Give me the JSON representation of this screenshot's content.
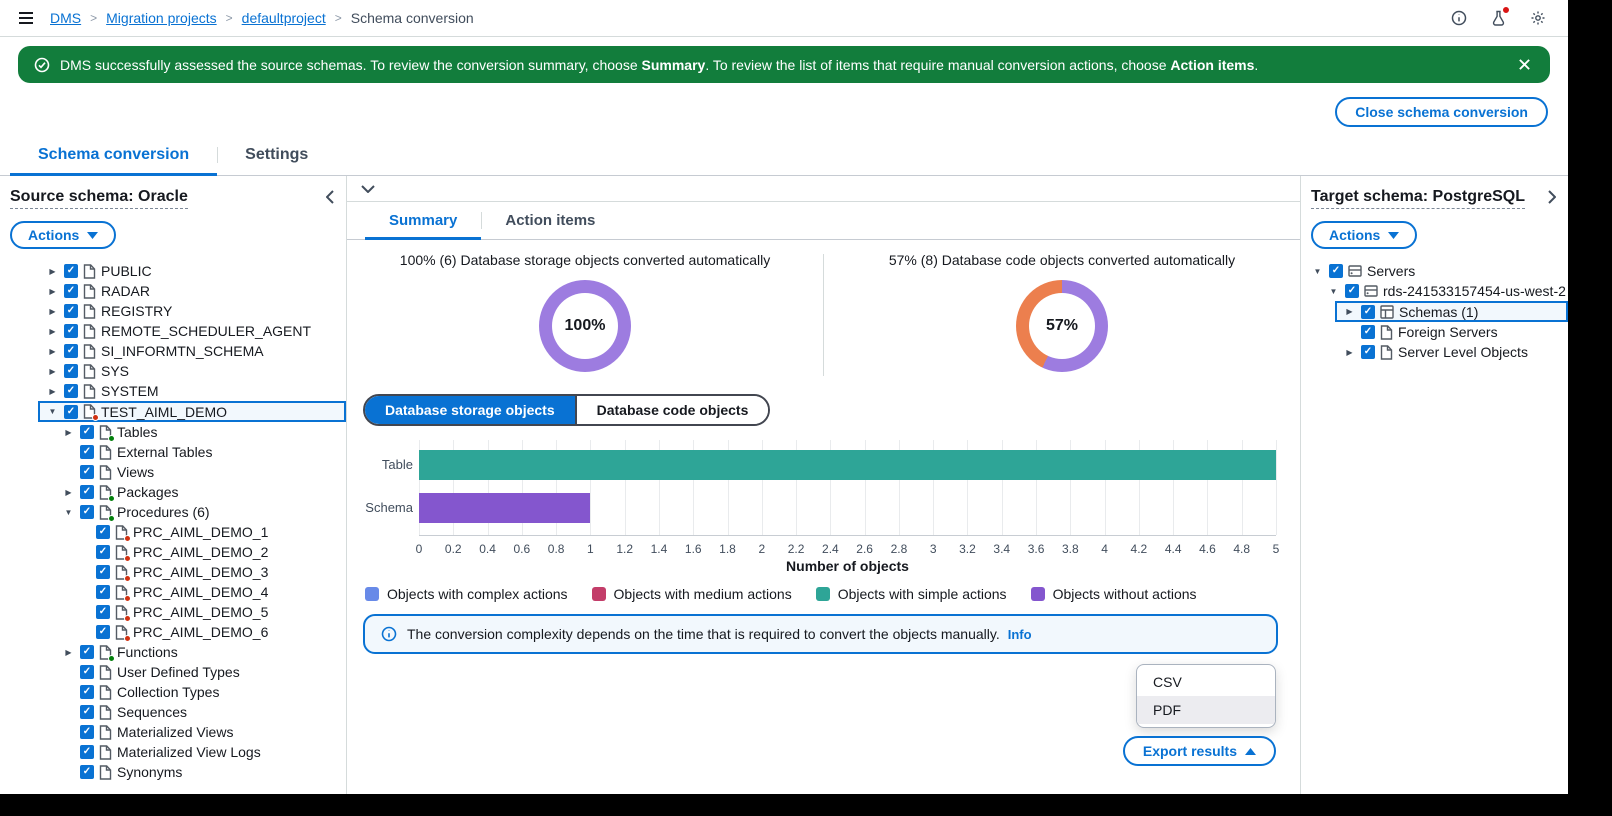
{
  "breadcrumb": [
    {
      "label": "DMS",
      "link": true
    },
    {
      "label": "Migration projects",
      "link": true
    },
    {
      "label": "defaultproject",
      "link": true
    },
    {
      "label": "Schema conversion",
      "link": false
    }
  ],
  "flashbar": {
    "segments": [
      {
        "text": "DMS successfully assessed the source schemas. To review the conversion summary, choose ",
        "bold": false
      },
      {
        "text": "Summary",
        "bold": true
      },
      {
        "text": ". To review the list of items that require manual conversion actions, choose ",
        "bold": false
      },
      {
        "text": "Action items",
        "bold": true
      },
      {
        "text": ".",
        "bold": false
      }
    ]
  },
  "buttons": {
    "close_schema_conversion": "Close schema conversion",
    "export_results": "Export results"
  },
  "main_tabs": [
    {
      "label": "Schema conversion",
      "active": true
    },
    {
      "label": "Settings",
      "active": false
    }
  ],
  "source_panel": {
    "title": "Source schema: Oracle",
    "actions_label": "Actions",
    "tree": [
      {
        "label": "PUBLIC",
        "level": 0,
        "arrow": "right",
        "checked": true,
        "icon": "doc",
        "badge": null
      },
      {
        "label": "RADAR",
        "level": 0,
        "arrow": "right",
        "checked": true,
        "icon": "doc",
        "badge": null
      },
      {
        "label": "REGISTRY",
        "level": 0,
        "arrow": "right",
        "checked": true,
        "icon": "doc",
        "badge": null
      },
      {
        "label": "REMOTE_SCHEDULER_AGENT",
        "level": 0,
        "arrow": "right",
        "checked": true,
        "icon": "doc",
        "badge": null
      },
      {
        "label": "SI_INFORMTN_SCHEMA",
        "level": 0,
        "arrow": "right",
        "checked": true,
        "icon": "doc",
        "badge": null
      },
      {
        "label": "SYS",
        "level": 0,
        "arrow": "right",
        "checked": true,
        "icon": "doc",
        "badge": null
      },
      {
        "label": "SYSTEM",
        "level": 0,
        "arrow": "right",
        "checked": true,
        "icon": "doc",
        "badge": null
      },
      {
        "label": "TEST_AIML_DEMO",
        "level": 0,
        "arrow": "down",
        "checked": true,
        "icon": "doc",
        "badge": "red",
        "selected": true
      },
      {
        "label": "Tables",
        "level": 1,
        "arrow": "right",
        "checked": true,
        "icon": "doc",
        "badge": "green"
      },
      {
        "label": "External Tables",
        "level": 1,
        "arrow": null,
        "checked": true,
        "icon": "doc",
        "badge": null
      },
      {
        "label": "Views",
        "level": 1,
        "arrow": null,
        "checked": true,
        "icon": "doc",
        "badge": null
      },
      {
        "label": "Packages",
        "level": 1,
        "arrow": "right",
        "checked": true,
        "icon": "doc",
        "badge": "green"
      },
      {
        "label": "Procedures (6)",
        "level": 1,
        "arrow": "down",
        "checked": true,
        "icon": "doc",
        "badge": "green"
      },
      {
        "label": "PRC_AIML_DEMO_1",
        "level": 2,
        "arrow": null,
        "checked": true,
        "icon": "doc",
        "badge": "red"
      },
      {
        "label": "PRC_AIML_DEMO_2",
        "level": 2,
        "arrow": null,
        "checked": true,
        "icon": "doc",
        "badge": "red"
      },
      {
        "label": "PRC_AIML_DEMO_3",
        "level": 2,
        "arrow": null,
        "checked": true,
        "icon": "doc",
        "badge": "red"
      },
      {
        "label": "PRC_AIML_DEMO_4",
        "level": 2,
        "arrow": null,
        "checked": true,
        "icon": "doc",
        "badge": "red"
      },
      {
        "label": "PRC_AIML_DEMO_5",
        "level": 2,
        "arrow": null,
        "checked": true,
        "icon": "doc",
        "badge": "red"
      },
      {
        "label": "PRC_AIML_DEMO_6",
        "level": 2,
        "arrow": null,
        "checked": true,
        "icon": "doc",
        "badge": "red"
      },
      {
        "label": "Functions",
        "level": 1,
        "arrow": "right",
        "checked": true,
        "icon": "doc",
        "badge": "green"
      },
      {
        "label": "User Defined Types",
        "level": 1,
        "arrow": null,
        "checked": true,
        "icon": "doc",
        "badge": null
      },
      {
        "label": "Collection Types",
        "level": 1,
        "arrow": null,
        "checked": true,
        "icon": "doc",
        "badge": null
      },
      {
        "label": "Sequences",
        "level": 1,
        "arrow": null,
        "checked": true,
        "icon": "doc",
        "badge": null
      },
      {
        "label": "Materialized Views",
        "level": 1,
        "arrow": null,
        "checked": true,
        "icon": "doc",
        "badge": null
      },
      {
        "label": "Materialized View Logs",
        "level": 1,
        "arrow": null,
        "checked": true,
        "icon": "doc",
        "badge": null
      },
      {
        "label": "Synonyms",
        "level": 1,
        "arrow": null,
        "checked": true,
        "icon": "doc",
        "badge": null
      }
    ]
  },
  "center_panel": {
    "tabs": [
      {
        "label": "Summary",
        "active": true
      },
      {
        "label": "Action items",
        "active": false
      }
    ],
    "toggle": [
      {
        "label": "Database storage objects",
        "active": true
      },
      {
        "label": "Database code objects",
        "active": false
      }
    ],
    "info_alert": {
      "text": "The conversion complexity depends on the time that is required to convert the objects manually.",
      "link_label": "Info"
    },
    "export_menu": [
      {
        "label": "CSV",
        "highlighted": false
      },
      {
        "label": "PDF",
        "highlighted": true
      }
    ]
  },
  "target_panel": {
    "title": "Target schema: PostgreSQL",
    "actions_label": "Actions",
    "tree": [
      {
        "label": "Servers",
        "level": 0,
        "arrow": "down",
        "checked": true,
        "icon": "server",
        "badge": null
      },
      {
        "label": "rds-241533157454-us-west-2",
        "level": 1,
        "arrow": "down",
        "checked": true,
        "icon": "server",
        "badge": null
      },
      {
        "label": "Schemas (1)",
        "level": 2,
        "arrow": "right",
        "checked": true,
        "icon": "schema",
        "badge": null,
        "selected": true
      },
      {
        "label": "Foreign Servers",
        "level": 2,
        "arrow": null,
        "checked": true,
        "icon": "doc",
        "badge": null
      },
      {
        "label": "Server Level Objects",
        "level": 2,
        "arrow": "right",
        "checked": true,
        "icon": "doc",
        "badge": null
      }
    ]
  },
  "chart_data": [
    {
      "type": "donut",
      "title": "100% (6) Database storage objects converted automatically",
      "center_label": "100%",
      "percent": 100,
      "segments": [
        {
          "label": "Converted automatically",
          "value": 100,
          "color": "#9d7ce0"
        }
      ]
    },
    {
      "type": "donut",
      "title": "57% (8) Database code objects converted automatically",
      "center_label": "57%",
      "percent": 57,
      "segments": [
        {
          "label": "Converted automatically",
          "value": 57,
          "color": "#9d7ce0"
        },
        {
          "label": "Requires manual conversion",
          "value": 43,
          "color": "#ec7f4e"
        }
      ]
    },
    {
      "type": "bar",
      "orientation": "horizontal",
      "categories": [
        "Table",
        "Schema"
      ],
      "values": [
        5,
        1
      ],
      "bar_colors": [
        "#2ea597",
        "#8456ce"
      ],
      "xlabel": "Number of objects",
      "xlim": [
        0,
        5
      ],
      "x_ticks": [
        "0",
        "0.2",
        "0.4",
        "0.6",
        "0.8",
        "1",
        "1.2",
        "1.4",
        "1.6",
        "1.8",
        "2",
        "2.2",
        "2.4",
        "2.6",
        "2.8",
        "3",
        "3.2",
        "3.4",
        "3.6",
        "3.8",
        "4",
        "4.2",
        "4.4",
        "4.6",
        "4.8",
        "5"
      ],
      "grid": true,
      "legend_position": "bottom",
      "legend": [
        {
          "label": "Objects with complex actions",
          "color": "#688ae8"
        },
        {
          "label": "Objects with medium actions",
          "color": "#c33d69"
        },
        {
          "label": "Objects with simple actions",
          "color": "#2ea597"
        },
        {
          "label": "Objects without actions",
          "color": "#8456ce"
        }
      ]
    }
  ],
  "icons": {
    "menu": "hamburger",
    "info": "circle-i",
    "notifications": "flask with red dot",
    "settings": "gear",
    "success_check": "check in circle",
    "banner_close": "x",
    "tree_expanded": "▼",
    "tree_collapsed": "▶",
    "checkbox_check": "✓",
    "actions_caret": "▼",
    "export_caret": "▲"
  },
  "colors": {
    "accent": "#0972d3",
    "success_banner": "#127d3c",
    "donut_converted": "#9d7ce0",
    "donut_manual": "#ec7f4e"
  }
}
